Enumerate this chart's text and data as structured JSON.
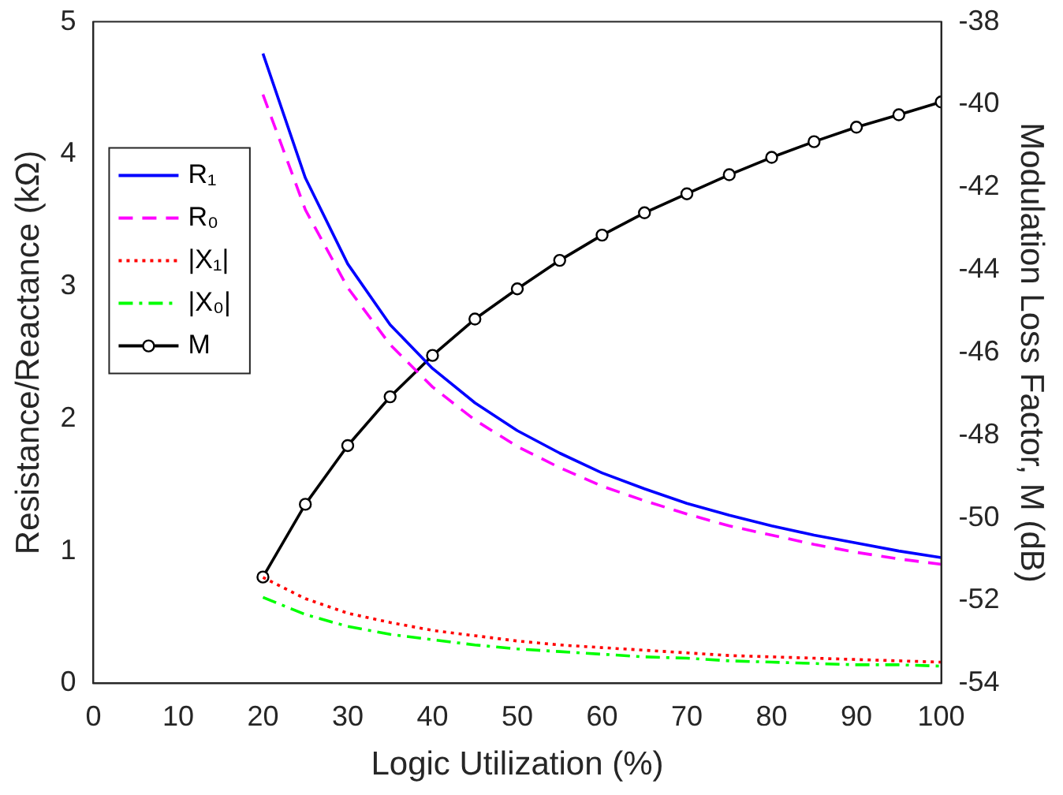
{
  "chart_data": {
    "type": "line",
    "xlabel": "Logic Utilization (%)",
    "ylabel": "Resistance/Reactance (kΩ)",
    "y2label": "Modulation Loss Factor, M (dB)",
    "x": [
      20,
      25,
      30,
      35,
      40,
      45,
      50,
      55,
      60,
      65,
      70,
      75,
      80,
      85,
      90,
      95,
      100
    ],
    "xlim": [
      0,
      100
    ],
    "xticks": [
      0,
      10,
      20,
      30,
      40,
      50,
      60,
      70,
      80,
      90,
      100
    ],
    "ylim": [
      0,
      5
    ],
    "yticks": [
      0,
      1,
      2,
      3,
      4,
      5
    ],
    "y2lim": [
      -54,
      -38
    ],
    "y2ticks": [
      -54,
      -52,
      -50,
      -48,
      -46,
      -44,
      -42,
      -40,
      -38
    ],
    "grid": false,
    "legend": "top left",
    "series": [
      {
        "name": "R₁",
        "color": "#0000ff",
        "line_style": "solid",
        "marker": "none",
        "values": [
          4.76,
          3.82,
          3.17,
          2.71,
          2.38,
          2.12,
          1.91,
          1.74,
          1.59,
          1.47,
          1.36,
          1.27,
          1.19,
          1.12,
          1.06,
          1.0,
          0.95
        ]
      },
      {
        "name": "R₀",
        "color": "#ff00ff",
        "line_style": "dashed",
        "marker": "none",
        "values": [
          4.45,
          3.58,
          2.99,
          2.56,
          2.24,
          1.99,
          1.79,
          1.63,
          1.49,
          1.38,
          1.28,
          1.19,
          1.12,
          1.05,
          0.99,
          0.94,
          0.9
        ]
      },
      {
        "name": "|X₁|",
        "color": "#ff0000",
        "line_style": "dotted",
        "marker": "none",
        "values": [
          0.8,
          0.64,
          0.53,
          0.46,
          0.4,
          0.36,
          0.32,
          0.29,
          0.27,
          0.25,
          0.23,
          0.21,
          0.2,
          0.19,
          0.18,
          0.17,
          0.16
        ]
      },
      {
        "name": "|X₀|",
        "color": "#00ff00",
        "line_style": "dashdot",
        "marker": "none",
        "values": [
          0.65,
          0.52,
          0.43,
          0.37,
          0.33,
          0.29,
          0.26,
          0.24,
          0.22,
          0.2,
          0.19,
          0.17,
          0.16,
          0.15,
          0.14,
          0.14,
          0.13
        ]
      },
      {
        "name": "M",
        "color": "#000000",
        "line_style": "solid",
        "marker": "circle",
        "axis": "y2",
        "values": [
          -51.43,
          -49.67,
          -48.25,
          -47.07,
          -46.07,
          -45.19,
          -44.46,
          -43.77,
          -43.16,
          -42.62,
          -42.16,
          -41.7,
          -41.28,
          -40.9,
          -40.55,
          -40.25,
          -39.94
        ]
      }
    ]
  }
}
